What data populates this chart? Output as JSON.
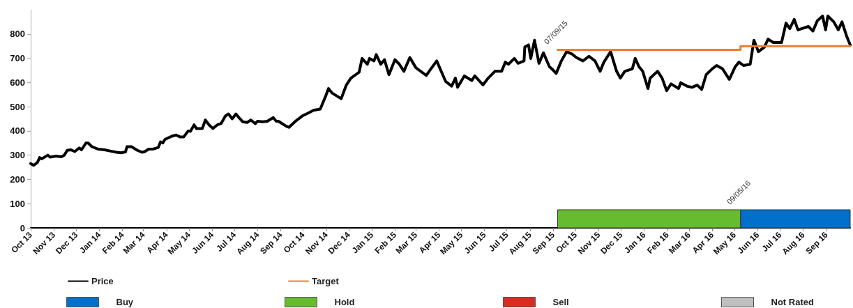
{
  "chart_data": {
    "type": "line",
    "xlim": [
      "2013-10-01",
      "2016-10-03"
    ],
    "ylim": [
      0,
      900
    ],
    "yticks": [
      0,
      100,
      200,
      300,
      400,
      500,
      600,
      700,
      800
    ],
    "xticks": [
      {
        "value": "2013-10",
        "label": "Oct 13"
      },
      {
        "value": "2013-11",
        "label": "Nov 13"
      },
      {
        "value": "2013-12",
        "label": "Dec 13"
      },
      {
        "value": "2014-01",
        "label": "Jan 14"
      },
      {
        "value": "2014-02",
        "label": "Feb 14"
      },
      {
        "value": "2014-03",
        "label": "Mar 14"
      },
      {
        "value": "2014-04",
        "label": "Apr 14"
      },
      {
        "value": "2014-05",
        "label": "May 14"
      },
      {
        "value": "2014-06",
        "label": "Jun 14"
      },
      {
        "value": "2014-07",
        "label": "Jul 14"
      },
      {
        "value": "2014-08",
        "label": "Aug 14"
      },
      {
        "value": "2014-09",
        "label": "Sep 14"
      },
      {
        "value": "2014-10",
        "label": "Oct 14"
      },
      {
        "value": "2014-11",
        "label": "Nov 14"
      },
      {
        "value": "2014-12",
        "label": "Dec 14"
      },
      {
        "value": "2015-01",
        "label": "Jan 15"
      },
      {
        "value": "2015-02",
        "label": "Feb 15"
      },
      {
        "value": "2015-03",
        "label": "Mar 15"
      },
      {
        "value": "2015-04",
        "label": "Apr 15"
      },
      {
        "value": "2015-05",
        "label": "May 15"
      },
      {
        "value": "2015-06",
        "label": "Jun 15"
      },
      {
        "value": "2015-07",
        "label": "Jul 15"
      },
      {
        "value": "2015-08",
        "label": "Aug 15"
      },
      {
        "value": "2015-09",
        "label": "Sep 15"
      },
      {
        "value": "2015-10",
        "label": "Oct 15"
      },
      {
        "value": "2015-11",
        "label": "Nov 15"
      },
      {
        "value": "2015-12",
        "label": "Dec 15"
      },
      {
        "value": "2016-01",
        "label": "Jan 16"
      },
      {
        "value": "2016-02",
        "label": "Feb 16"
      },
      {
        "value": "2016-03",
        "label": "Mar 16"
      },
      {
        "value": "2016-04",
        "label": "Apr 16"
      },
      {
        "value": "2016-05",
        "label": "May 16"
      },
      {
        "value": "2016-06",
        "label": "Jun 16"
      },
      {
        "value": "2016-07",
        "label": "Jul 16"
      },
      {
        "value": "2016-08",
        "label": "Aug 16"
      },
      {
        "value": "2016-09",
        "label": "Sep 16"
      }
    ],
    "series": [
      {
        "name": "Price",
        "color": "#000000",
        "x": [
          "2013-10-01",
          "2013-10-05",
          "2013-10-10",
          "2013-10-13",
          "2013-10-16",
          "2013-10-24",
          "2013-10-27",
          "2013-11-04",
          "2013-11-11",
          "2013-11-15",
          "2013-11-19",
          "2013-11-24",
          "2013-11-29",
          "2013-12-05",
          "2013-12-08",
          "2013-12-14",
          "2013-12-17",
          "2013-12-22",
          "2013-12-30",
          "2014-01-08",
          "2014-01-14",
          "2014-01-24",
          "2014-01-30",
          "2014-02-05",
          "2014-02-07",
          "2014-02-13",
          "2014-02-21",
          "2014-02-27",
          "2014-03-03",
          "2014-03-08",
          "2014-03-14",
          "2014-03-21",
          "2014-03-24",
          "2014-03-27",
          "2014-03-30",
          "2014-04-08",
          "2014-04-14",
          "2014-04-19",
          "2014-04-24",
          "2014-04-30",
          "2014-05-03",
          "2014-05-08",
          "2014-05-11",
          "2014-05-19",
          "2014-05-23",
          "2014-05-28",
          "2014-06-02",
          "2014-06-08",
          "2014-06-13",
          "2014-06-19",
          "2014-06-23",
          "2014-06-28",
          "2014-07-03",
          "2014-07-07",
          "2014-07-12",
          "2014-07-18",
          "2014-07-23",
          "2014-07-29",
          "2014-08-01",
          "2014-08-08",
          "2014-08-14",
          "2014-08-22",
          "2014-08-26",
          "2014-08-29",
          "2014-09-08",
          "2014-09-12",
          "2014-09-20",
          "2014-09-30",
          "2014-10-06",
          "2014-10-15",
          "2014-10-24",
          "2014-10-31",
          "2014-11-04",
          "2014-11-09",
          "2014-11-21",
          "2014-11-28",
          "2014-12-04",
          "2014-12-15",
          "2014-12-19",
          "2014-12-26",
          "2014-12-29",
          "2015-01-04",
          "2015-01-07",
          "2015-01-13",
          "2015-01-18",
          "2015-01-24",
          "2015-02-01",
          "2015-02-07",
          "2015-02-13",
          "2015-02-21",
          "2015-03-01",
          "2015-03-15",
          "2015-03-20",
          "2015-03-29",
          "2015-04-04",
          "2015-04-10",
          "2015-04-18",
          "2015-04-23",
          "2015-04-26",
          "2015-05-05",
          "2015-05-15",
          "2015-05-19",
          "2015-05-30",
          "2015-06-06",
          "2015-06-15",
          "2015-06-24",
          "2015-06-29",
          "2015-07-03",
          "2015-07-11",
          "2015-07-16",
          "2015-07-24",
          "2015-07-25",
          "2015-07-30",
          "2015-08-02",
          "2015-08-07",
          "2015-08-13",
          "2015-08-19",
          "2015-08-27",
          "2015-09-01",
          "2015-09-05",
          "2015-09-12",
          "2015-09-19",
          "2015-09-26",
          "2015-10-02",
          "2015-10-11",
          "2015-10-19",
          "2015-10-27",
          "2015-11-03",
          "2015-11-08",
          "2015-11-17",
          "2015-11-25",
          "2015-11-30",
          "2015-12-06",
          "2015-12-16",
          "2015-12-20",
          "2015-12-25",
          "2015-12-30",
          "2016-01-06",
          "2016-01-09",
          "2016-01-19",
          "2016-01-25",
          "2016-01-31",
          "2016-02-06",
          "2016-02-16",
          "2016-02-19",
          "2016-02-28",
          "2016-03-05",
          "2016-03-12",
          "2016-03-18",
          "2016-03-24",
          "2016-04-01",
          "2016-04-07",
          "2016-04-15",
          "2016-04-24",
          "2016-05-02",
          "2016-05-07",
          "2016-05-13",
          "2016-05-22",
          "2016-05-27",
          "2016-06-02",
          "2016-06-10",
          "2016-06-15",
          "2016-06-22",
          "2016-07-03",
          "2016-07-09",
          "2016-07-14",
          "2016-07-20",
          "2016-07-25",
          "2016-08-08",
          "2016-08-14",
          "2016-08-20",
          "2016-08-27",
          "2016-08-31",
          "2016-09-03",
          "2016-09-11",
          "2016-09-17",
          "2016-09-22",
          "2016-09-28",
          "2016-10-03"
        ],
        "values": [
          265,
          258,
          270,
          290,
          285,
          300,
          292,
          296,
          293,
          300,
          320,
          322,
          315,
          330,
          322,
          350,
          350,
          335,
          325,
          322,
          318,
          312,
          310,
          313,
          335,
          335,
          320,
          312,
          315,
          325,
          325,
          332,
          355,
          350,
          365,
          378,
          383,
          375,
          375,
          400,
          398,
          425,
          410,
          410,
          445,
          425,
          410,
          425,
          430,
          462,
          470,
          450,
          470,
          455,
          438,
          435,
          445,
          430,
          440,
          438,
          440,
          455,
          440,
          440,
          420,
          415,
          438,
          462,
          471,
          485,
          490,
          542,
          575,
          556,
          533,
          590,
          618,
          642,
          699,
          675,
          699,
          689,
          715,
          675,
          694,
          632,
          694,
          675,
          646,
          703,
          661,
          629,
          651,
          689,
          646,
          604,
          585,
          618,
          580,
          627,
          608,
          627,
          590,
          618,
          646,
          646,
          684,
          675,
          699,
          679,
          689,
          746,
          755,
          699,
          774,
          679,
          722,
          665,
          651,
          637,
          689,
          727,
          718,
          703,
          689,
          708,
          689,
          646,
          684,
          727,
          646,
          618,
          646,
          656,
          699,
          665,
          646,
          575,
          618,
          646,
          618,
          566,
          594,
          575,
          599,
          584,
          580,
          589,
          571,
          632,
          656,
          670,
          656,
          613,
          665,
          684,
          670,
          675,
          774,
          727,
          746,
          779,
          765,
          765,
          845,
          822,
          860,
          817,
          831,
          812,
          855,
          874,
          817,
          874,
          850,
          817,
          850,
          793,
          755
        ]
      },
      {
        "name": "Target",
        "type": "step",
        "color": "#ed7d31",
        "x": [
          "2015-09-07",
          "2016-05-09",
          "2016-10-03"
        ],
        "values": [
          735,
          750,
          750
        ]
      },
      {
        "name": "Sell",
        "type": "bar",
        "color": "#dc2a1f"
      },
      {
        "name": "Not Rated",
        "type": "bar",
        "color": "#bfbfbf"
      }
    ],
    "bands": [
      {
        "axis": "x",
        "from": "2016-05-09",
        "to": "2016-10-03",
        "label": "Buy",
        "color": "#0070cc"
      },
      {
        "axis": "x",
        "from": "2015-09-07",
        "to": "2016-05-09",
        "label": "Hold",
        "color": "#66bb2e"
      }
    ],
    "annotations": [
      {
        "text": "07/09/15",
        "x": "2015-09-07",
        "y": 735
      },
      "09/05/16"
    ],
    "legend": "bottom",
    "grid": false,
    "marker": "none",
    "line_style": "solid"
  }
}
